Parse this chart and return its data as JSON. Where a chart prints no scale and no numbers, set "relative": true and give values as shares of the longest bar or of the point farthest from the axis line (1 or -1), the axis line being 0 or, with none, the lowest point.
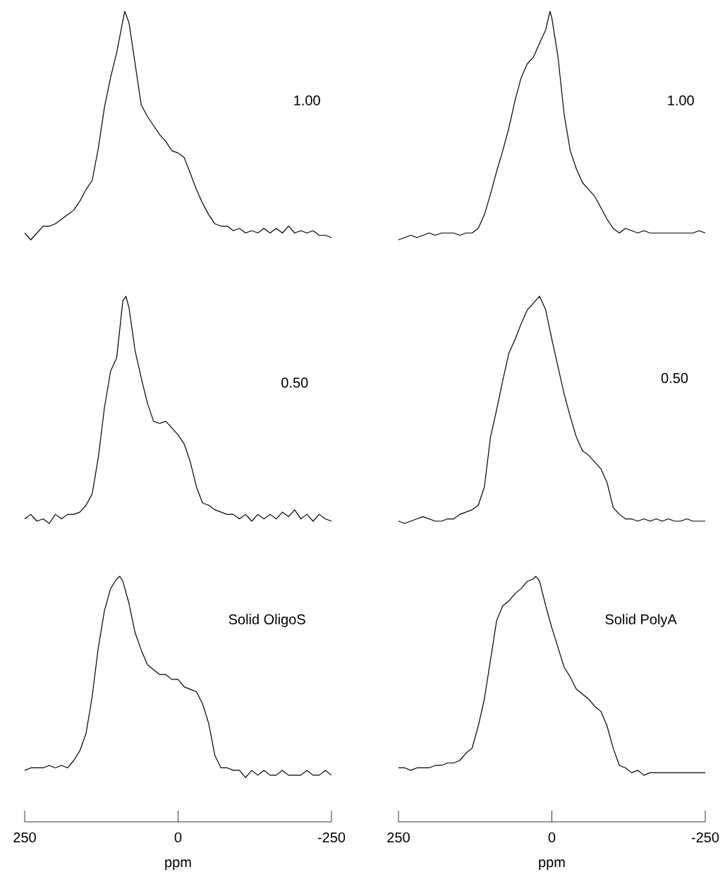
{
  "chart_data": [
    {
      "type": "line",
      "relative": true,
      "xlim": [
        250,
        -250
      ],
      "tick_labels": false,
      "color": "#000000",
      "annotations": [
        "1.00"
      ],
      "x": [
        250,
        240,
        230,
        220,
        210,
        200,
        190,
        180,
        170,
        160,
        150,
        140,
        130,
        120,
        110,
        100,
        87,
        80,
        70,
        60,
        50,
        40,
        30,
        20,
        10,
        0,
        -10,
        -20,
        -30,
        -40,
        -50,
        -60,
        -70,
        -80,
        -90,
        -100,
        -110,
        -120,
        -130,
        -140,
        -150,
        -160,
        -170,
        -180,
        -190,
        -200,
        -210,
        -220,
        -230,
        -240,
        -250
      ],
      "values": [
        0.03,
        0,
        0.03,
        0.06,
        0.06,
        0.07,
        0.09,
        0.11,
        0.13,
        0.17,
        0.22,
        0.26,
        0.4,
        0.58,
        0.71,
        0.82,
        1,
        0.95,
        0.77,
        0.59,
        0.54,
        0.5,
        0.46,
        0.43,
        0.39,
        0.38,
        0.36,
        0.29,
        0.22,
        0.16,
        0.11,
        0.07,
        0.06,
        0.06,
        0.04,
        0.05,
        0.03,
        0.04,
        0.03,
        0.05,
        0.03,
        0.05,
        0.03,
        0.06,
        0.03,
        0.04,
        0.03,
        0.04,
        0.02,
        0.02,
        0.01
      ]
    },
    {
      "type": "line",
      "relative": true,
      "xlim": [
        250,
        -250
      ],
      "tick_labels": false,
      "color": "#000000",
      "annotations": [
        "1.00"
      ],
      "x": [
        250,
        240,
        230,
        220,
        210,
        200,
        190,
        180,
        170,
        160,
        150,
        140,
        130,
        120,
        110,
        100,
        90,
        80,
        70,
        60,
        50,
        40,
        30,
        20,
        10,
        3,
        0,
        -10,
        -20,
        -30,
        -40,
        -50,
        -60,
        -70,
        -80,
        -90,
        -100,
        -110,
        -120,
        -130,
        -140,
        -150,
        -160,
        -170,
        -180,
        -190,
        -200,
        -210,
        -220,
        -230,
        -240,
        -250
      ],
      "values": [
        0,
        0.01,
        0.02,
        0.01,
        0.02,
        0.03,
        0.02,
        0.03,
        0.03,
        0.03,
        0.02,
        0.03,
        0.03,
        0.05,
        0.11,
        0.2,
        0.3,
        0.39,
        0.49,
        0.61,
        0.71,
        0.77,
        0.8,
        0.86,
        0.92,
        1,
        0.97,
        0.8,
        0.55,
        0.39,
        0.31,
        0.25,
        0.22,
        0.19,
        0.14,
        0.09,
        0.05,
        0.03,
        0.05,
        0.04,
        0.03,
        0.04,
        0.03,
        0.03,
        0.03,
        0.03,
        0.03,
        0.03,
        0.03,
        0.03,
        0.04,
        0.03
      ]
    },
    {
      "type": "line",
      "relative": true,
      "xlim": [
        250,
        -250
      ],
      "tick_labels": false,
      "color": "#000000",
      "annotations": [
        "0.50"
      ],
      "x": [
        250,
        240,
        230,
        220,
        210,
        200,
        190,
        180,
        170,
        160,
        150,
        140,
        130,
        120,
        110,
        100,
        90,
        85,
        80,
        70,
        60,
        50,
        40,
        30,
        20,
        10,
        0,
        -10,
        -20,
        -30,
        -40,
        -50,
        -60,
        -70,
        -80,
        -90,
        -100,
        -110,
        -120,
        -130,
        -140,
        -150,
        -160,
        -170,
        -180,
        -190,
        -200,
        -210,
        -220,
        -230,
        -240,
        -250
      ],
      "values": [
        0.02,
        0.04,
        0.01,
        0.02,
        0,
        0.04,
        0.02,
        0.04,
        0.04,
        0.05,
        0.08,
        0.13,
        0.29,
        0.51,
        0.67,
        0.73,
        0.98,
        1,
        0.95,
        0.76,
        0.64,
        0.53,
        0.45,
        0.44,
        0.45,
        0.42,
        0.39,
        0.35,
        0.27,
        0.16,
        0.09,
        0.08,
        0.06,
        0.05,
        0.04,
        0.04,
        0.02,
        0.04,
        0.01,
        0.04,
        0.02,
        0.04,
        0.02,
        0.05,
        0.03,
        0.06,
        0.02,
        0.04,
        0.01,
        0.04,
        0.02,
        0.01
      ]
    },
    {
      "type": "line",
      "relative": true,
      "xlim": [
        250,
        -250
      ],
      "tick_labels": false,
      "color": "#000000",
      "annotations": [
        "0.50"
      ],
      "x": [
        250,
        240,
        230,
        220,
        210,
        200,
        190,
        180,
        170,
        160,
        150,
        140,
        130,
        120,
        110,
        100,
        90,
        80,
        70,
        60,
        50,
        40,
        30,
        20,
        10,
        0,
        -10,
        -20,
        -30,
        -40,
        -50,
        -60,
        -70,
        -80,
        -90,
        -100,
        -110,
        -120,
        -130,
        -140,
        -150,
        -160,
        -170,
        -180,
        -190,
        -200,
        -210,
        -220,
        -230,
        -240,
        -250
      ],
      "values": [
        0.01,
        0,
        0.01,
        0.02,
        0.03,
        0.02,
        0.01,
        0.01,
        0.02,
        0.02,
        0.04,
        0.05,
        0.06,
        0.08,
        0.16,
        0.38,
        0.5,
        0.63,
        0.75,
        0.81,
        0.88,
        0.94,
        0.97,
        1,
        0.94,
        0.81,
        0.69,
        0.57,
        0.47,
        0.38,
        0.32,
        0.3,
        0.27,
        0.24,
        0.18,
        0.07,
        0.04,
        0.02,
        0.02,
        0.01,
        0.02,
        0.01,
        0.02,
        0.01,
        0.02,
        0.01,
        0.01,
        0.02,
        0.01,
        0.01,
        0.01
      ]
    },
    {
      "type": "line",
      "relative": true,
      "xlim": [
        250,
        -250
      ],
      "xticks": [
        250,
        0,
        -250
      ],
      "tick_labels": "x",
      "xlabel": "ppm",
      "color": "#000000",
      "annotations": [
        "Solid OligoS"
      ],
      "x": [
        250,
        240,
        230,
        220,
        210,
        200,
        190,
        180,
        170,
        160,
        150,
        140,
        130,
        120,
        110,
        100,
        95,
        90,
        80,
        70,
        60,
        50,
        40,
        30,
        20,
        10,
        0,
        -10,
        -20,
        -30,
        -40,
        -50,
        -60,
        -70,
        -80,
        -90,
        -100,
        -110,
        -120,
        -130,
        -140,
        -150,
        -160,
        -170,
        -180,
        -190,
        -200,
        -210,
        -220,
        -230,
        -240,
        -250
      ],
      "values": [
        0.21,
        0.22,
        0.22,
        0.22,
        0.23,
        0.22,
        0.23,
        0.22,
        0.25,
        0.29,
        0.36,
        0.51,
        0.71,
        0.86,
        0.95,
        0.99,
        1,
        0.98,
        0.89,
        0.77,
        0.7,
        0.64,
        0.62,
        0.6,
        0.6,
        0.58,
        0.58,
        0.55,
        0.54,
        0.53,
        0.48,
        0.4,
        0.27,
        0.22,
        0.22,
        0.21,
        0.21,
        0.18,
        0.21,
        0.19,
        0.21,
        0.19,
        0.19,
        0.21,
        0.19,
        0.19,
        0.19,
        0.21,
        0.19,
        0.19,
        0.21,
        0.19
      ]
    },
    {
      "type": "line",
      "relative": true,
      "xlim": [
        250,
        -250
      ],
      "xticks": [
        250,
        0,
        -250
      ],
      "tick_labels": "x",
      "xlabel": "ppm",
      "color": "#000000",
      "annotations": [
        "Solid PolyA"
      ],
      "x": [
        250,
        240,
        230,
        220,
        210,
        200,
        190,
        180,
        170,
        160,
        150,
        140,
        130,
        120,
        110,
        100,
        90,
        80,
        70,
        60,
        50,
        40,
        30,
        26,
        20,
        10,
        0,
        -10,
        -20,
        -30,
        -40,
        -50,
        -60,
        -70,
        -80,
        -90,
        -100,
        -110,
        -120,
        -130,
        -140,
        -150,
        -160,
        -170,
        -180,
        -190,
        -200,
        -210,
        -220,
        -230,
        -240,
        -250
      ],
      "values": [
        0.22,
        0.22,
        0.21,
        0.22,
        0.22,
        0.22,
        0.23,
        0.23,
        0.24,
        0.24,
        0.25,
        0.28,
        0.3,
        0.39,
        0.5,
        0.66,
        0.82,
        0.88,
        0.9,
        0.93,
        0.95,
        0.98,
        0.99,
        1,
        0.98,
        0.88,
        0.79,
        0.71,
        0.63,
        0.59,
        0.54,
        0.52,
        0.5,
        0.47,
        0.45,
        0.39,
        0.3,
        0.23,
        0.22,
        0.2,
        0.21,
        0.19,
        0.2,
        0.2,
        0.2,
        0.2,
        0.2,
        0.2,
        0.2,
        0.2,
        0.2,
        0.2
      ]
    }
  ]
}
